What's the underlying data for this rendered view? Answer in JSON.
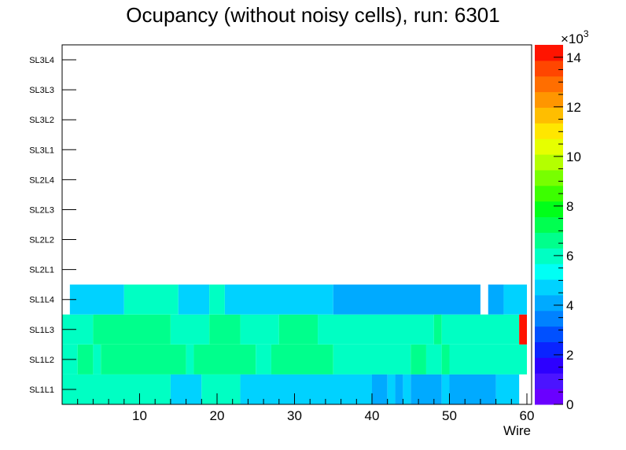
{
  "chart_data": {
    "type": "heatmap",
    "title": "Ocupancy (without noisy cells), run: 6301",
    "xlabel": "Wire",
    "ylabel": "",
    "xlim": [
      0,
      60
    ],
    "x_ticks": [
      10,
      20,
      30,
      40,
      50,
      60
    ],
    "y_categories": [
      "SL1L1",
      "SL1L2",
      "SL1L3",
      "SL1L4",
      "SL2L1",
      "SL2L2",
      "SL2L3",
      "SL2L4",
      "SL3L1",
      "SL3L2",
      "SL3L3",
      "SL3L4"
    ],
    "z_multiplier_label": "×10",
    "z_exponent": "3",
    "z_range": [
      0,
      14500
    ],
    "z_ticks": [
      0,
      2,
      4,
      6,
      8,
      10,
      12,
      14
    ],
    "palette": [
      "#6a00ff",
      "#4b14ff",
      "#2d00ff",
      "#0a24ff",
      "#0050ff",
      "#0082ff",
      "#00aaff",
      "#00d2ff",
      "#00fff5",
      "#00ffc3",
      "#00ff8c",
      "#00ff50",
      "#00ff19",
      "#3cff00",
      "#78ff00",
      "#b4ff00",
      "#e6ff00",
      "#ffe600",
      "#ffbe00",
      "#ff9600",
      "#ff6e00",
      "#ff4600",
      "#ff1400"
    ],
    "rows": [
      {
        "layer": "SL1L1",
        "cells": [
          {
            "x0": 0,
            "x1": 14,
            "z": 5800
          },
          {
            "x0": 14,
            "x1": 18,
            "z": 4900
          },
          {
            "x0": 18,
            "x1": 23,
            "z": 5800
          },
          {
            "x0": 23,
            "x1": 40,
            "z": 4900
          },
          {
            "x0": 40,
            "x1": 42,
            "z": 4300
          },
          {
            "x0": 42,
            "x1": 43,
            "z": 4900
          },
          {
            "x0": 43,
            "x1": 44,
            "z": 4300
          },
          {
            "x0": 44,
            "x1": 45,
            "z": 4900
          },
          {
            "x0": 45,
            "x1": 49,
            "z": 4300
          },
          {
            "x0": 49,
            "x1": 50,
            "z": 4900
          },
          {
            "x0": 50,
            "x1": 56,
            "z": 4300
          },
          {
            "x0": 56,
            "x1": 59,
            "z": 4900
          }
        ]
      },
      {
        "layer": "SL1L2",
        "cells": [
          {
            "x0": 0,
            "x1": 2,
            "z": 5800
          },
          {
            "x0": 2,
            "x1": 4,
            "z": 6700
          },
          {
            "x0": 4,
            "x1": 5,
            "z": 5800
          },
          {
            "x0": 5,
            "x1": 16,
            "z": 6700
          },
          {
            "x0": 16,
            "x1": 17,
            "z": 5800
          },
          {
            "x0": 17,
            "x1": 25,
            "z": 6700
          },
          {
            "x0": 25,
            "x1": 27,
            "z": 5800
          },
          {
            "x0": 27,
            "x1": 35,
            "z": 6700
          },
          {
            "x0": 35,
            "x1": 45,
            "z": 5800
          },
          {
            "x0": 45,
            "x1": 47,
            "z": 6700
          },
          {
            "x0": 47,
            "x1": 49,
            "z": 5800
          },
          {
            "x0": 49,
            "x1": 50,
            "z": 6700
          },
          {
            "x0": 50,
            "x1": 60,
            "z": 5800
          }
        ]
      },
      {
        "layer": "SL1L3",
        "cells": [
          {
            "x0": 0,
            "x1": 4,
            "z": 5800
          },
          {
            "x0": 4,
            "x1": 14,
            "z": 6700
          },
          {
            "x0": 14,
            "x1": 19,
            "z": 5800
          },
          {
            "x0": 19,
            "x1": 23,
            "z": 6700
          },
          {
            "x0": 23,
            "x1": 28,
            "z": 5800
          },
          {
            "x0": 28,
            "x1": 33,
            "z": 6700
          },
          {
            "x0": 33,
            "x1": 48,
            "z": 5800
          },
          {
            "x0": 48,
            "x1": 49,
            "z": 6700
          },
          {
            "x0": 49,
            "x1": 59,
            "z": 5800
          },
          {
            "x0": 59,
            "x1": 60,
            "z": 14500
          }
        ]
      },
      {
        "layer": "SL1L4",
        "cells": [
          {
            "x0": 1,
            "x1": 8,
            "z": 4900
          },
          {
            "x0": 8,
            "x1": 15,
            "z": 5800
          },
          {
            "x0": 15,
            "x1": 19,
            "z": 4900
          },
          {
            "x0": 19,
            "x1": 21,
            "z": 5800
          },
          {
            "x0": 21,
            "x1": 35,
            "z": 4900
          },
          {
            "x0": 35,
            "x1": 54,
            "z": 4300
          },
          {
            "x0": 55,
            "x1": 57,
            "z": 4300
          },
          {
            "x0": 57,
            "x1": 60,
            "z": 4900
          }
        ]
      },
      {
        "layer": "SL2L1",
        "cells": []
      },
      {
        "layer": "SL2L2",
        "cells": []
      },
      {
        "layer": "SL2L3",
        "cells": []
      },
      {
        "layer": "SL2L4",
        "cells": []
      },
      {
        "layer": "SL3L1",
        "cells": []
      },
      {
        "layer": "SL3L2",
        "cells": []
      },
      {
        "layer": "SL3L3",
        "cells": []
      },
      {
        "layer": "SL3L4",
        "cells": []
      }
    ]
  }
}
